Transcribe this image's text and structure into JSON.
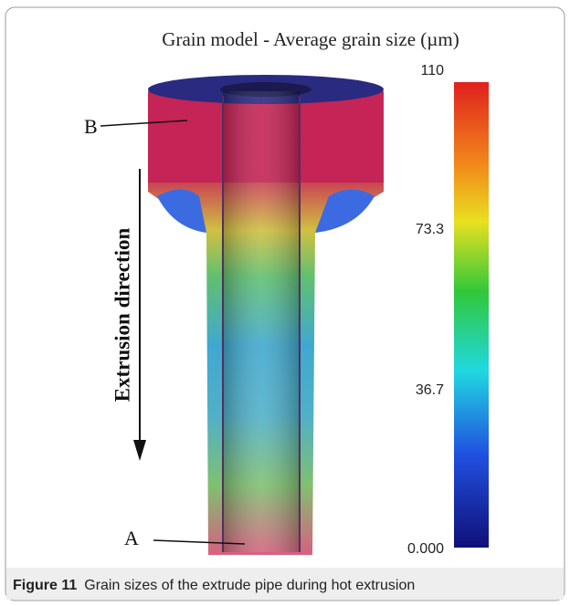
{
  "figure": {
    "title": "Grain model - Average grain size (µm)",
    "labels": {
      "a": "A",
      "b": "B",
      "direction": "Extrusion direction"
    },
    "colorbar": {
      "ticks": [
        "110",
        "73.3",
        "36.7",
        "0.000"
      ]
    },
    "caption": {
      "number": "Figure 11",
      "text": "Grain sizes of the extrude pipe during hot extrusion"
    }
  }
}
